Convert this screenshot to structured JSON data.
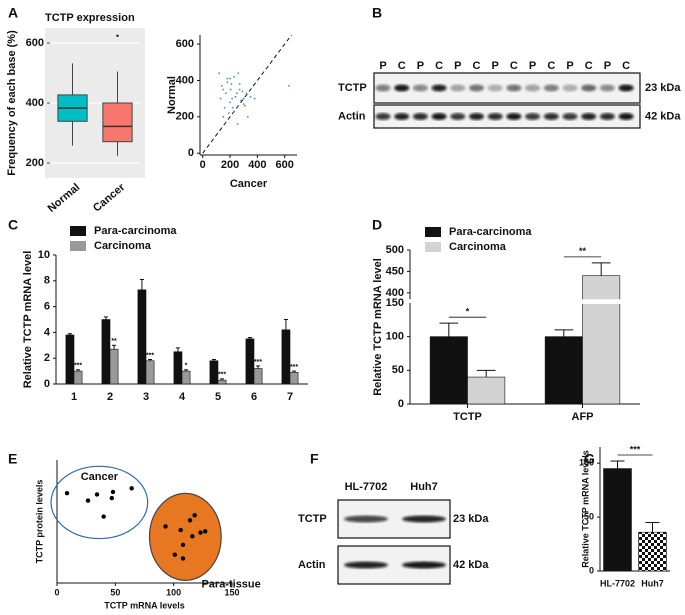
{
  "panel_labels": [
    "A",
    "B",
    "C",
    "D",
    "E",
    "F",
    "G"
  ],
  "chart_data": [
    {
      "type": "box",
      "title": "TCTP expression",
      "y_label": "Frequency of each base (%)",
      "categories": [
        "Normal",
        "Cancer"
      ],
      "colors": [
        "#00bfc4",
        "#f8766d"
      ],
      "boxes": [
        {
          "whislo": 258,
          "q1": 339,
          "med": 383,
          "q3": 427,
          "whishi": 532,
          "fliers": []
        },
        {
          "whislo": 224,
          "q1": 271,
          "med": 322,
          "q3": 400,
          "whishi": 505,
          "fliers": [
            624
          ]
        }
      ],
      "ylim": [
        150,
        650
      ],
      "yticks": [
        200,
        400,
        600
      ],
      "grid": true
    },
    {
      "type": "scatter",
      "x_label": "Cancer",
      "y_label": "Normal",
      "diagonal": true,
      "series": [
        {
          "color": "#4a90c2",
          "x": [
            120,
            130,
            150,
            160,
            170,
            180,
            190,
            200,
            205,
            210,
            215,
            220,
            230,
            240,
            250,
            255,
            260,
            270,
            280,
            290,
            300,
            310,
            320,
            330,
            350,
            150,
            180,
            230,
            270,
            300,
            200,
            260,
            140,
            380,
            630
          ],
          "y": [
            440,
            300,
            350,
            250,
            330,
            410,
            220,
            280,
            350,
            380,
            300,
            250,
            420,
            310,
            330,
            160,
            260,
            380,
            290,
            340,
            300,
            260,
            330,
            200,
            310,
            200,
            390,
            230,
            350,
            270,
            410,
            440,
            370,
            300,
            370
          ]
        }
      ],
      "xlim": [
        -20,
        690
      ],
      "ylim": [
        -10,
        650
      ],
      "xticks": [
        0,
        200,
        400,
        600
      ],
      "yticks": [
        0,
        200,
        400,
        600
      ]
    },
    {
      "type": "bar",
      "y_label": "Relative TCTP mRNA level",
      "categories": [
        "1",
        "2",
        "3",
        "4",
        "5",
        "6",
        "7"
      ],
      "series": [
        {
          "name": "Para-carcinoma",
          "color": "#111111",
          "values": [
            3.8,
            5.0,
            7.3,
            2.5,
            1.8,
            3.5,
            4.2
          ],
          "errors": [
            0.1,
            0.2,
            0.8,
            0.3,
            0.1,
            0.1,
            0.8
          ]
        },
        {
          "name": "Carcinoma",
          "color": "#999999",
          "values": [
            1.0,
            2.7,
            1.8,
            1.0,
            0.3,
            1.2,
            0.9
          ],
          "errors": [
            0.1,
            0.3,
            0.1,
            0.1,
            0.1,
            0.2,
            0.1
          ],
          "annotations": [
            "***",
            "**",
            "***",
            "*",
            "***",
            "***",
            "***"
          ]
        }
      ],
      "ylim": [
        0,
        10
      ],
      "yticks": [
        0,
        2,
        4,
        6,
        8,
        10
      ]
    },
    {
      "type": "bar",
      "y_label": "Relative TCTP mRNA level",
      "categories": [
        "TCTP",
        "AFP"
      ],
      "series": [
        {
          "name": "Para-carcinoma",
          "color": "#111111",
          "values": [
            100,
            100
          ],
          "errors": [
            20,
            10
          ]
        },
        {
          "name": "Carcinoma",
          "color": "#d3d3d3",
          "values": [
            40,
            440
          ],
          "errors": [
            10,
            30
          ]
        }
      ],
      "brackets": [
        "*",
        "**"
      ],
      "ylim": [
        0,
        500
      ],
      "ybreak": [
        150,
        385
      ],
      "yticks": [
        0,
        50,
        100,
        150,
        400,
        450,
        500
      ]
    },
    {
      "type": "scatter",
      "x_label": "TCTP mRNA levels",
      "y_label": "TCTP protein levels",
      "series": [
        {
          "name": "Cancer",
          "color": "#000000",
          "region_color": "#2e6da4",
          "region_filled": false,
          "x": [
            8.6,
            26.6,
            34.3,
            47,
            48,
            40,
            64
          ],
          "y": [
            73,
            67,
            72,
            69,
            74,
            54,
            77
          ]
        },
        {
          "name": "Para-tissue",
          "color": "#000000",
          "region_color": "#e87722",
          "region_filled": true,
          "x": [
            93,
            106,
            114,
            118,
            123,
            127,
            108,
            101,
            108,
            116
          ],
          "y": [
            46,
            43,
            51,
            55,
            41,
            42,
            31,
            23,
            20,
            38
          ]
        }
      ],
      "xlim": [
        0,
        150
      ],
      "ylim": [
        0,
        100
      ],
      "xticks": [
        0,
        50,
        100,
        150
      ]
    },
    {
      "type": "bar",
      "y_label": "Relative TCTP mRNA levels",
      "categories": [
        "HL-7702",
        "Huh7"
      ],
      "colors": [
        "#111111",
        "#ffffff"
      ],
      "hatch": [
        false,
        true
      ],
      "values": [
        95,
        36
      ],
      "errors": [
        7,
        9
      ],
      "brackets": [
        "***"
      ],
      "ylim": [
        0,
        115
      ],
      "yticks": [
        0,
        50,
        100
      ]
    }
  ],
  "blots": [
    {
      "lanes": [
        "P",
        "C",
        "P",
        "C",
        "P",
        "C",
        "P",
        "C",
        "P",
        "C",
        "P",
        "C",
        "P",
        "C"
      ],
      "rows": [
        "TCTP",
        "Actin"
      ],
      "sizes": [
        "23 kDa",
        "42 kDa"
      ]
    },
    {
      "lanes": [
        "HL-7702",
        "Huh7"
      ],
      "rows": [
        "TCTP",
        "Actin"
      ],
      "sizes": [
        "23 kDa",
        "42 kDa"
      ]
    }
  ]
}
